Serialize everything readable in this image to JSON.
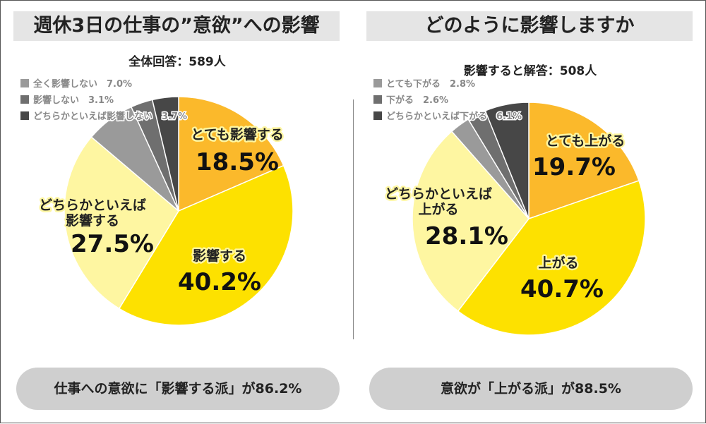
{
  "panels": [
    {
      "title": "週休3日の仕事の”意欲”への影響",
      "respondents": "全体回答：589人",
      "summary": "仕事への意欲に「影響する派」が86.2%"
    },
    {
      "title": "どのように影響しますか",
      "respondents": "影響すると解答：508人",
      "summary": "意欲が「上がる派」が88.5%"
    }
  ],
  "chart_data": [
    {
      "type": "pie",
      "title": "週休3日の仕事の”意欲”への影響",
      "subtitle": "全体回答：589人",
      "slices": [
        {
          "label": "とても影響する",
          "value": 18.5,
          "color": "#fbb92b",
          "text": "18.5%"
        },
        {
          "label": "影響する",
          "value": 40.2,
          "color": "#fde100",
          "text": "40.2%"
        },
        {
          "label": "どちらかといえば影響する",
          "value": 27.5,
          "color": "#fef6a1",
          "text": "27.5%"
        },
        {
          "label": "全く影響しない",
          "value": 7.0,
          "color": "#9a9a9a",
          "text": "7.0%"
        },
        {
          "label": "影響しない",
          "value": 3.1,
          "color": "#6f6f6f",
          "text": "3.1%"
        },
        {
          "label": "どちらかといえば影響しない",
          "value": 3.7,
          "color": "#474747",
          "text": "3.7%"
        }
      ],
      "legend_placement": "top-left"
    },
    {
      "type": "pie",
      "title": "どのように影響しますか",
      "subtitle": "影響すると解答：508人",
      "slices": [
        {
          "label": "とても上がる",
          "value": 19.7,
          "color": "#fbb92b",
          "text": "19.7%"
        },
        {
          "label": "上がる",
          "value": 40.7,
          "color": "#fde100",
          "text": "40.7%"
        },
        {
          "label": "どちらかといえば上がる",
          "value": 28.1,
          "color": "#fef6a1",
          "text": "28.1%"
        },
        {
          "label": "とても下がる",
          "value": 2.8,
          "color": "#9a9a9a",
          "text": "2.8%"
        },
        {
          "label": "下がる",
          "value": 2.6,
          "color": "#6f6f6f",
          "text": "2.6%"
        },
        {
          "label": "どちらかといえば下がる",
          "value": 6.1,
          "color": "#474747",
          "text": "6.1%"
        }
      ],
      "legend_placement": "top-left"
    }
  ]
}
